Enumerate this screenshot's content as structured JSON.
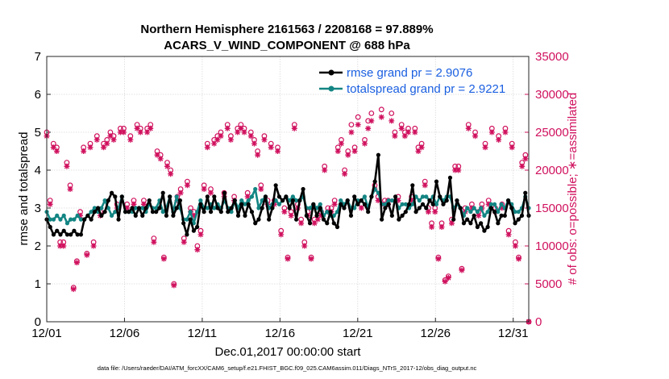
{
  "chart_data": {
    "type": "line",
    "title_line1": "Northern Hemisphere 2161563 / 2208168 = 97.889%",
    "title_line2": "ACARS_V_WIND_COMPONENT @ 688 hPa",
    "xlabel": "Dec.01,2017 00:00:00 start",
    "ylabel_left": "rmse and totalspread",
    "ylabel_right": "# of obs: o=possible; ∗=assimilated",
    "footer": "data file: /Users/raeder/DAI/ATM_forcXX/CAM6_setup/f.e21.FHIST_BGC.f09_025.CAM6assim.011/Diags_NTrS_2017-12/obs_diag_output.nc",
    "x_ticks": [
      "12/01",
      "12/06",
      "12/11",
      "12/16",
      "12/21",
      "12/26",
      "12/31"
    ],
    "x_tick_days": [
      0,
      5,
      10,
      15,
      20,
      25,
      30
    ],
    "xlim": [
      0,
      31
    ],
    "ylim_left": [
      0,
      7
    ],
    "y_ticks_left": [
      "0",
      "1",
      "2",
      "3",
      "4",
      "5",
      "6",
      "7"
    ],
    "ylim_right": [
      0,
      35000
    ],
    "y_ticks_right": [
      "0",
      "5000",
      "10000",
      "15000",
      "20000",
      "25000",
      "30000",
      "35000"
    ],
    "grid": true,
    "legend_position": "top-right",
    "colors": {
      "rmse": "#000000",
      "spread": "#138583",
      "obs": "#d0115e",
      "legend_text": "#1a5fe0"
    },
    "series": [
      {
        "name": "rmse",
        "legend": "rmse grand pr = 2.9076",
        "values": [
          2.7,
          2.5,
          2.3,
          2.4,
          2.3,
          2.4,
          2.3,
          2.3,
          2.4,
          2.3,
          2.3,
          2.7,
          2.8,
          2.7,
          2.9,
          3.0,
          2.8,
          2.9,
          3.2,
          3.4,
          3.3,
          2.7,
          3.3,
          2.9,
          2.9,
          3.0,
          2.8,
          3.0,
          2.8,
          3.0,
          3.2,
          2.9,
          2.9,
          3.0,
          3.4,
          2.8,
          3.3,
          2.8,
          3.0,
          3.2,
          2.6,
          2.3,
          2.7,
          2.4,
          2.5,
          3.1,
          2.9,
          3.3,
          2.9,
          3.3,
          3.0,
          2.9,
          3.4,
          2.9,
          3.0,
          3.2,
          2.8,
          3.1,
          2.8,
          3.1,
          2.9,
          2.6,
          2.7,
          3.0,
          3.3,
          2.7,
          3.0,
          3.6,
          3.3,
          3.2,
          3.3,
          3.0,
          3.2,
          2.7,
          3.2,
          3.5,
          2.8,
          2.6,
          3.1,
          2.8,
          3.0,
          2.7,
          2.6,
          2.9,
          2.6,
          2.5,
          3.1,
          3.0,
          3.2,
          2.8,
          3.3,
          3.1,
          3.2,
          3.1,
          2.9,
          3.3,
          3.7,
          4.4,
          2.7,
          3.0,
          3.1,
          2.8,
          3.3,
          2.7,
          2.8,
          2.9,
          3.1,
          3.6,
          2.9,
          3.0,
          3.1,
          3.0,
          3.2,
          3.1,
          3.7,
          3.3,
          3.1,
          3.2,
          3.8,
          2.7,
          3.2,
          3.0,
          2.6,
          2.7,
          2.6,
          2.8,
          2.5,
          2.6,
          2.4,
          2.5,
          3.0,
          2.9,
          2.6,
          2.8,
          2.8,
          3.2,
          3.0,
          2.6,
          2.7,
          2.8,
          3.4,
          2.8
        ]
      },
      {
        "name": "totalspread",
        "legend": "totalspread grand pr = 2.9221",
        "values": [
          2.9,
          2.7,
          2.7,
          2.8,
          2.7,
          2.8,
          2.6,
          2.7,
          2.7,
          2.8,
          2.7,
          2.7,
          2.8,
          2.9,
          3.0,
          2.9,
          3.0,
          3.2,
          3.0,
          2.8,
          2.9,
          3.0,
          3.3,
          2.9,
          2.9,
          2.9,
          3.0,
          3.0,
          3.0,
          2.9,
          3.1,
          3.0,
          3.0,
          3.2,
          2.9,
          3.0,
          3.3,
          2.9,
          3.3,
          3.0,
          2.7,
          2.7,
          2.9,
          2.6,
          2.9,
          3.2,
          3.0,
          3.0,
          3.1,
          3.0,
          3.1,
          3.0,
          3.2,
          3.0,
          2.9,
          3.2,
          3.0,
          3.2,
          3.1,
          3.2,
          3.3,
          3.5,
          3.0,
          3.2,
          3.3,
          3.0,
          3.1,
          3.2,
          3.1,
          3.2,
          3.3,
          3.2,
          3.3,
          3.2,
          3.2,
          3.3,
          3.0,
          3.0,
          3.1,
          3.0,
          3.1,
          2.8,
          2.9,
          2.8,
          2.8,
          2.9,
          3.2,
          3.1,
          3.2,
          3.0,
          3.0,
          3.2,
          3.2,
          3.3,
          3.0,
          3.3,
          3.5,
          3.4,
          3.1,
          3.1,
          3.2,
          3.2,
          3.2,
          3.0,
          3.1,
          3.1,
          3.0,
          3.1,
          3.3,
          3.2,
          3.3,
          3.3,
          3.2,
          3.3,
          3.1,
          3.3,
          3.2,
          3.3,
          3.3,
          3.0,
          3.1,
          3.0,
          2.8,
          3.0,
          2.9,
          3.0,
          2.9,
          3.0,
          2.8,
          2.9,
          3.1,
          3.1,
          2.9,
          3.1,
          3.0,
          3.2,
          3.1,
          2.9,
          2.9,
          3.0,
          3.3,
          3.0
        ]
      },
      {
        "name": "obs_possible",
        "values": [
          25000,
          16000,
          23500,
          23000,
          10500,
          10500,
          21000,
          18000,
          4500,
          8000,
          14500,
          23000,
          9000,
          23500,
          10500,
          24500,
          14500,
          23500,
          24000,
          25000,
          24500,
          15500,
          25500,
          25500,
          15500,
          24500,
          16000,
          26000,
          25500,
          16000,
          25500,
          26000,
          11000,
          22500,
          22000,
          8500,
          21000,
          20000,
          5000,
          16500,
          17500,
          11000,
          18500,
          15000,
          14500,
          10000,
          12000,
          18000,
          23500,
          17500,
          24000,
          24500,
          25000,
          17000,
          26000,
          24500,
          16500,
          25500,
          26000,
          25500,
          17000,
          25000,
          24000,
          22500,
          18000,
          24500,
          16000,
          23500,
          16000,
          23000,
          12000,
          15000,
          8500,
          14500,
          26000,
          15500,
          13500,
          10500,
          14500,
          8500,
          13500,
          14000,
          14500,
          20500,
          15000,
          15000,
          16000,
          23000,
          24000,
          20000,
          22500,
          26000,
          23000,
          27000,
          15500,
          24000,
          26500,
          27500,
          18000,
          16500,
          28000,
          16000,
          16000,
          27500,
          25000,
          16500,
          26000,
          25000,
          25500,
          16500,
          25500,
          23000,
          23500,
          18500,
          15000,
          13000,
          15000,
          8500,
          13000,
          5500,
          6000,
          13500,
          20500,
          20500,
          7000,
          15000,
          26000,
          15500,
          25000,
          14500,
          15500,
          23500,
          16000,
          25500,
          15000,
          24500,
          15500,
          25500,
          12000,
          23500,
          10500,
          8500,
          21000,
          22000,
          0
        ]
      },
      {
        "name": "obs_assimilated",
        "values": [
          24500,
          15500,
          23000,
          22500,
          10000,
          10000,
          20500,
          17500,
          4300,
          7800,
          14000,
          22500,
          8800,
          23000,
          10000,
          24000,
          14000,
          23000,
          23500,
          24500,
          24000,
          15000,
          25000,
          25000,
          15000,
          24000,
          15500,
          25500,
          25000,
          15500,
          25000,
          25500,
          10500,
          22000,
          21500,
          8300,
          20500,
          19500,
          4800,
          16000,
          17000,
          10500,
          18000,
          14500,
          14000,
          9500,
          11500,
          17500,
          23000,
          17000,
          23500,
          24000,
          24500,
          16500,
          25500,
          24000,
          16000,
          25000,
          25500,
          25000,
          16500,
          24500,
          23500,
          22000,
          17500,
          24000,
          15500,
          23000,
          15500,
          22500,
          11500,
          14500,
          8300,
          14000,
          25500,
          15000,
          13000,
          10000,
          14000,
          8300,
          13000,
          13500,
          14000,
          20000,
          14500,
          14500,
          15500,
          22500,
          23500,
          19500,
          22000,
          25000,
          22500,
          26000,
          15000,
          23500,
          25500,
          26500,
          17500,
          16000,
          27000,
          15500,
          15500,
          26500,
          24500,
          16000,
          25500,
          24500,
          25000,
          16000,
          25000,
          22500,
          23000,
          18000,
          14500,
          12500,
          14500,
          8300,
          12500,
          5300,
          5800,
          13000,
          20000,
          20000,
          6800,
          14500,
          25500,
          15000,
          24500,
          14000,
          15000,
          23000,
          15500,
          25000,
          14500,
          24000,
          15000,
          25000,
          11500,
          23000,
          10000,
          8300,
          20500,
          21500,
          0
        ]
      }
    ]
  }
}
